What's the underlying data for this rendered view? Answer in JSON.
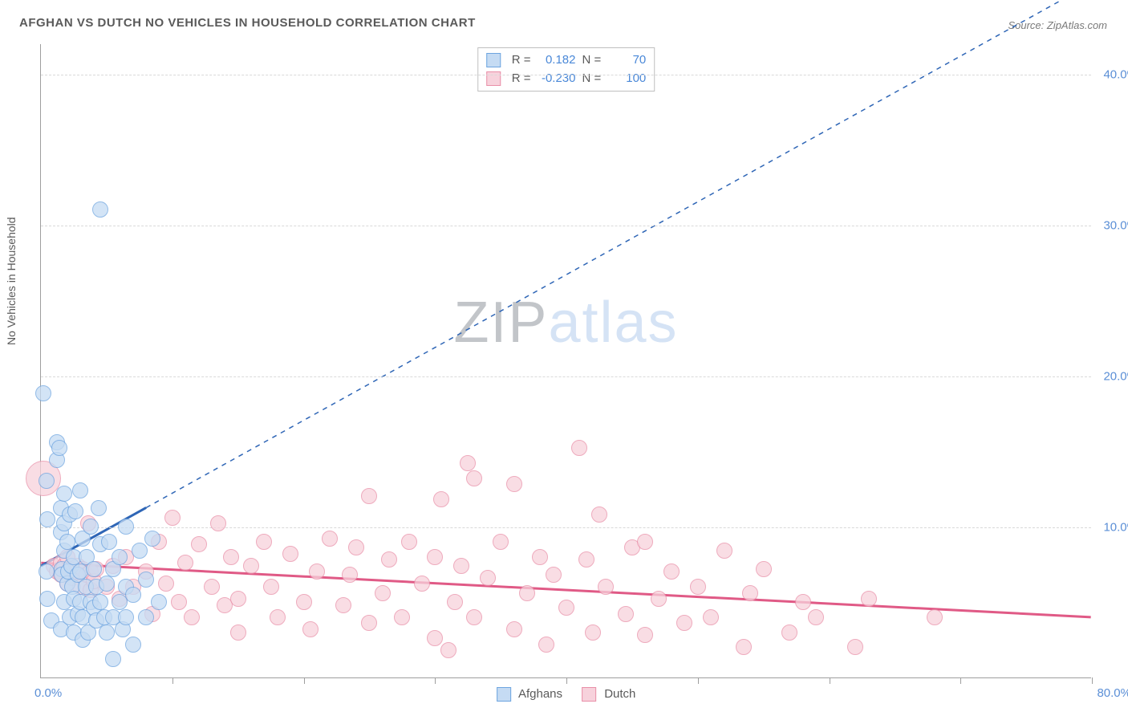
{
  "title": "AFGHAN VS DUTCH NO VEHICLES IN HOUSEHOLD CORRELATION CHART",
  "source": "Source: ZipAtlas.com",
  "ylabel": "No Vehicles in Household",
  "watermark": {
    "part1": "ZIP",
    "part2": "atlas"
  },
  "chart": {
    "type": "scatter",
    "background_color": "#ffffff",
    "grid_color": "#d9d9d9",
    "axis_color": "#9e9e9e",
    "text_color": "#5a5a5a",
    "tick_label_color": "#5b8fd6",
    "xlim": [
      0,
      80
    ],
    "ylim": [
      0,
      42
    ],
    "xticks": [
      0,
      10,
      20,
      30,
      40,
      50,
      60,
      70,
      80
    ],
    "ygrid": [
      10,
      20,
      30,
      40
    ],
    "ytick_labels": [
      "10.0%",
      "20.0%",
      "30.0%",
      "40.0%"
    ],
    "xlabel_start": "0.0%",
    "xlabel_end": "80.0%",
    "label_fontsize": 15,
    "title_fontsize": 15,
    "series": {
      "afghans": {
        "name": "Afghans",
        "marker_fill": "#c5dbf3",
        "marker_stroke": "#6ea5e0",
        "marker_opacity": 0.75,
        "marker_radius": 10,
        "R": "0.182",
        "N": "70",
        "trend_color": "#2f66b6",
        "trend_slope_y_at_x0": 7.4,
        "trend_y_at_x80": 46.0,
        "trend_solid_until_x": 8,
        "points": [
          [
            0.2,
            18.8
          ],
          [
            0.4,
            7.0
          ],
          [
            0.4,
            13.0
          ],
          [
            0.5,
            10.5
          ],
          [
            0.5,
            5.2
          ],
          [
            0.8,
            3.8
          ],
          [
            1.2,
            15.6
          ],
          [
            1.2,
            14.4
          ],
          [
            1.4,
            15.2
          ],
          [
            1.5,
            11.2
          ],
          [
            1.5,
            9.6
          ],
          [
            1.5,
            3.2
          ],
          [
            1.6,
            7.2
          ],
          [
            1.6,
            6.8
          ],
          [
            1.8,
            10.2
          ],
          [
            1.8,
            8.4
          ],
          [
            1.8,
            12.2
          ],
          [
            1.8,
            5.0
          ],
          [
            2.0,
            6.2
          ],
          [
            2.0,
            9.0
          ],
          [
            2.1,
            7.0
          ],
          [
            2.2,
            10.8
          ],
          [
            2.2,
            4.0
          ],
          [
            2.3,
            7.4
          ],
          [
            2.4,
            6.0
          ],
          [
            2.5,
            5.2
          ],
          [
            2.5,
            8.0
          ],
          [
            2.5,
            3.0
          ],
          [
            2.6,
            11.0
          ],
          [
            2.8,
            4.2
          ],
          [
            2.8,
            6.8
          ],
          [
            3.0,
            7.0
          ],
          [
            3.0,
            12.4
          ],
          [
            3.0,
            5.0
          ],
          [
            3.2,
            4.0
          ],
          [
            3.2,
            9.2
          ],
          [
            3.2,
            2.5
          ],
          [
            3.4,
            6.0
          ],
          [
            3.5,
            8.0
          ],
          [
            3.6,
            3.0
          ],
          [
            3.8,
            5.0
          ],
          [
            3.8,
            10.0
          ],
          [
            4.0,
            4.6
          ],
          [
            4.0,
            7.2
          ],
          [
            4.2,
            6.0
          ],
          [
            4.2,
            3.8
          ],
          [
            4.4,
            11.2
          ],
          [
            4.5,
            5.0
          ],
          [
            4.5,
            8.8
          ],
          [
            4.8,
            4.0
          ],
          [
            5.0,
            6.2
          ],
          [
            5.0,
            3.0
          ],
          [
            5.2,
            9.0
          ],
          [
            5.5,
            4.0
          ],
          [
            5.5,
            7.2
          ],
          [
            5.5,
            1.2
          ],
          [
            6.0,
            5.0
          ],
          [
            6.0,
            8.0
          ],
          [
            6.2,
            3.2
          ],
          [
            6.5,
            6.0
          ],
          [
            6.5,
            4.0
          ],
          [
            6.5,
            10.0
          ],
          [
            7.0,
            5.5
          ],
          [
            7.0,
            2.2
          ],
          [
            7.5,
            8.4
          ],
          [
            8.0,
            4.0
          ],
          [
            8.0,
            6.5
          ],
          [
            8.5,
            9.2
          ],
          [
            9.0,
            5.0
          ],
          [
            4.5,
            31.0
          ]
        ]
      },
      "dutch": {
        "name": "Dutch",
        "marker_fill": "#f7d2dc",
        "marker_stroke": "#e98fa8",
        "marker_opacity": 0.75,
        "marker_radius": 10,
        "R": "-0.230",
        "N": "100",
        "trend_color": "#e05a86",
        "trend_y_at_x0": 7.6,
        "trend_y_at_x80": 4.0,
        "big_point": {
          "x": 0.2,
          "y": 13.2,
          "r": 22
        },
        "points": [
          [
            1.0,
            7.4
          ],
          [
            1.2,
            7.0
          ],
          [
            1.5,
            7.6
          ],
          [
            1.5,
            6.8
          ],
          [
            1.8,
            7.4
          ],
          [
            2.0,
            8.0
          ],
          [
            2.0,
            6.2
          ],
          [
            2.2,
            7.2
          ],
          [
            2.4,
            6.6
          ],
          [
            2.5,
            7.0
          ],
          [
            2.8,
            7.4
          ],
          [
            3.0,
            6.0
          ],
          [
            3.2,
            7.2
          ],
          [
            3.5,
            6.8
          ],
          [
            3.6,
            10.2
          ],
          [
            3.8,
            7.0
          ],
          [
            3.8,
            5.8
          ],
          [
            4.0,
            6.4
          ],
          [
            4.2,
            7.2
          ],
          [
            5.0,
            6.0
          ],
          [
            5.5,
            7.4
          ],
          [
            6.0,
            5.2
          ],
          [
            6.5,
            8.0
          ],
          [
            7.0,
            6.0
          ],
          [
            8.0,
            7.0
          ],
          [
            8.5,
            4.2
          ],
          [
            9.0,
            9.0
          ],
          [
            9.5,
            6.2
          ],
          [
            10.0,
            10.6
          ],
          [
            10.5,
            5.0
          ],
          [
            11.0,
            7.6
          ],
          [
            11.5,
            4.0
          ],
          [
            12.0,
            8.8
          ],
          [
            13.0,
            6.0
          ],
          [
            13.5,
            10.2
          ],
          [
            14.0,
            4.8
          ],
          [
            14.5,
            8.0
          ],
          [
            15.0,
            5.2
          ],
          [
            15.0,
            3.0
          ],
          [
            16.0,
            7.4
          ],
          [
            17.0,
            9.0
          ],
          [
            17.5,
            6.0
          ],
          [
            18.0,
            4.0
          ],
          [
            19.0,
            8.2
          ],
          [
            20.0,
            5.0
          ],
          [
            20.5,
            3.2
          ],
          [
            21.0,
            7.0
          ],
          [
            22.0,
            9.2
          ],
          [
            23.0,
            4.8
          ],
          [
            23.5,
            6.8
          ],
          [
            24.0,
            8.6
          ],
          [
            25.0,
            3.6
          ],
          [
            25.0,
            12.0
          ],
          [
            26.0,
            5.6
          ],
          [
            26.5,
            7.8
          ],
          [
            27.5,
            4.0
          ],
          [
            28.0,
            9.0
          ],
          [
            29.0,
            6.2
          ],
          [
            30.0,
            2.6
          ],
          [
            30.0,
            8.0
          ],
          [
            30.5,
            11.8
          ],
          [
            31.0,
            1.8
          ],
          [
            31.5,
            5.0
          ],
          [
            32.0,
            7.4
          ],
          [
            32.5,
            14.2
          ],
          [
            33.0,
            4.0
          ],
          [
            33.0,
            13.2
          ],
          [
            34.0,
            6.6
          ],
          [
            35.0,
            9.0
          ],
          [
            36.0,
            3.2
          ],
          [
            36.0,
            12.8
          ],
          [
            37.0,
            5.6
          ],
          [
            38.0,
            8.0
          ],
          [
            38.5,
            2.2
          ],
          [
            39.0,
            6.8
          ],
          [
            40.0,
            4.6
          ],
          [
            41.0,
            15.2
          ],
          [
            41.5,
            7.8
          ],
          [
            42.0,
            3.0
          ],
          [
            42.5,
            10.8
          ],
          [
            43.0,
            6.0
          ],
          [
            44.5,
            4.2
          ],
          [
            45.0,
            8.6
          ],
          [
            46.0,
            2.8
          ],
          [
            46.0,
            9.0
          ],
          [
            47.0,
            5.2
          ],
          [
            48.0,
            7.0
          ],
          [
            49.0,
            3.6
          ],
          [
            50.0,
            6.0
          ],
          [
            51.0,
            4.0
          ],
          [
            52.0,
            8.4
          ],
          [
            53.5,
            2.0
          ],
          [
            54.0,
            5.6
          ],
          [
            55.0,
            7.2
          ],
          [
            57.0,
            3.0
          ],
          [
            58.0,
            5.0
          ],
          [
            59.0,
            4.0
          ],
          [
            62.0,
            2.0
          ],
          [
            63.0,
            5.2
          ],
          [
            68.0,
            4.0
          ]
        ]
      }
    }
  },
  "stats_box": {
    "swatch_border_afghans": "#6ea5e0",
    "swatch_fill_afghans": "#c5dbf3",
    "swatch_border_dutch": "#e98fa8",
    "swatch_fill_dutch": "#f7d2dc",
    "r_label": "R =",
    "n_label": "N ="
  }
}
